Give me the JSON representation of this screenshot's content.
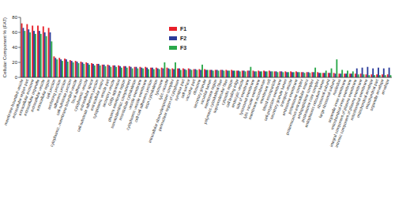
{
  "chart_data": {
    "type": "bar",
    "y_label": "Cellular Component % (FAT)",
    "categories": [
      "membrane-bounded vesicle",
      "extracellular region part",
      "extracellular exosome",
      "extracellular organelle",
      "extracellular vesicle",
      "extracellular region",
      "cell junction",
      "anchoring junction",
      "adherens junction",
      "cell-substrate junction",
      "cytoplasmic, membrane-bounded vesicle",
      "focal adhesion",
      "cytoplasmic vesicle",
      "extracellular space",
      "cell-substrate adherens junction",
      "extracellular matrix",
      "cytoplasmic vesicle part",
      "secretory vesicle",
      "Golgi apparatus",
      "plasma membrane region",
      "somatodendritic compartment",
      "microtubule cytoskeleton",
      "vesicle membrane",
      "cytoplasmic vesicle membrane",
      "cell-cell adherens junction",
      "actin cytoskeleton",
      "lysosome",
      "lytic vacuole",
      "intracellular ribonucleoprotein complex",
      "perinuclear region of cytoplasm",
      "synapse part",
      "cell surface",
      "vacuolar part",
      "ribosome",
      "secretory granule",
      "vacuolar lumen",
      "membrane region",
      "polymeric cytoskeletal fiber",
      "supramolecular fiber",
      "cytosolic region",
      "cell leading edge",
      "endocytic vesicle",
      "side of membrane",
      "lysosomal membrane",
      "lytic vacuole membrane",
      "membrane microdomain",
      "membrane raft",
      "blood microparticle",
      "cell projection membrane",
      "secretory granule lumen",
      "transport vesicle",
      "endosome membrane",
      "proteasome complex",
      "proteinaceous extracellular matrix",
      "endopeptidase complex",
      "proteasome core complex",
      "endoplasmic reticulum lumen",
      "ribosomal subunit",
      "large ribosomal subunit",
      "nucleolus",
      "organelle inner membrane",
      "mitochondrial inner membrane",
      "integral component of plasma membrane",
      "intrinsic component of plasma membrane",
      "mitochondrial membrane",
      "mitochondrial envelope",
      "mitochondrial part",
      "organelle envelope",
      "envelope"
    ],
    "series": [
      {
        "name": "F1",
        "color": "#e8202a",
        "values": [
          72,
          71,
          69,
          69,
          68,
          66,
          28,
          26,
          25,
          23,
          22,
          21,
          20,
          19,
          18,
          17,
          17,
          16,
          16,
          15,
          15,
          14,
          14,
          14,
          13,
          13,
          13,
          13,
          12,
          12,
          12,
          12,
          11,
          11,
          11,
          10,
          10,
          10,
          10,
          10,
          9,
          9,
          9,
          9,
          9,
          9,
          9,
          8,
          8,
          8,
          8,
          8,
          7,
          7,
          7,
          7,
          6,
          6,
          6,
          5,
          5,
          5,
          5,
          5,
          4,
          4,
          4,
          4,
          4
        ]
      },
      {
        "name": "F2",
        "color": "#2a3b9a",
        "values": [
          66,
          64,
          62,
          62,
          60,
          60,
          26,
          24,
          24,
          22,
          21,
          20,
          19,
          18,
          18,
          17,
          16,
          16,
          15,
          15,
          14,
          14,
          13,
          13,
          13,
          12,
          12,
          12,
          11,
          12,
          11,
          11,
          11,
          10,
          10,
          10,
          10,
          10,
          9,
          9,
          9,
          9,
          9,
          8,
          8,
          8,
          8,
          8,
          8,
          7,
          7,
          7,
          7,
          7,
          7,
          6,
          6,
          6,
          5,
          5,
          5,
          5,
          12,
          13,
          14,
          12,
          13,
          12,
          13
        ]
      },
      {
        "name": "F3",
        "color": "#2aa84a",
        "values": [
          62,
          60,
          58,
          58,
          55,
          48,
          24,
          22,
          21,
          20,
          19,
          18,
          17,
          16,
          16,
          15,
          14,
          14,
          13,
          13,
          12,
          12,
          12,
          11,
          11,
          11,
          20,
          11,
          20,
          10,
          10,
          10,
          10,
          17,
          10,
          9,
          9,
          9,
          9,
          9,
          8,
          8,
          14,
          8,
          8,
          8,
          8,
          7,
          7,
          7,
          7,
          7,
          6,
          6,
          13,
          6,
          9,
          12,
          24,
          10,
          9,
          8,
          4,
          4,
          3,
          3,
          3,
          3,
          3
        ]
      }
    ],
    "ylim": [
      0,
      80
    ],
    "yticks": [
      0,
      20,
      40,
      60,
      80
    ],
    "legend": "top",
    "grid": false
  }
}
